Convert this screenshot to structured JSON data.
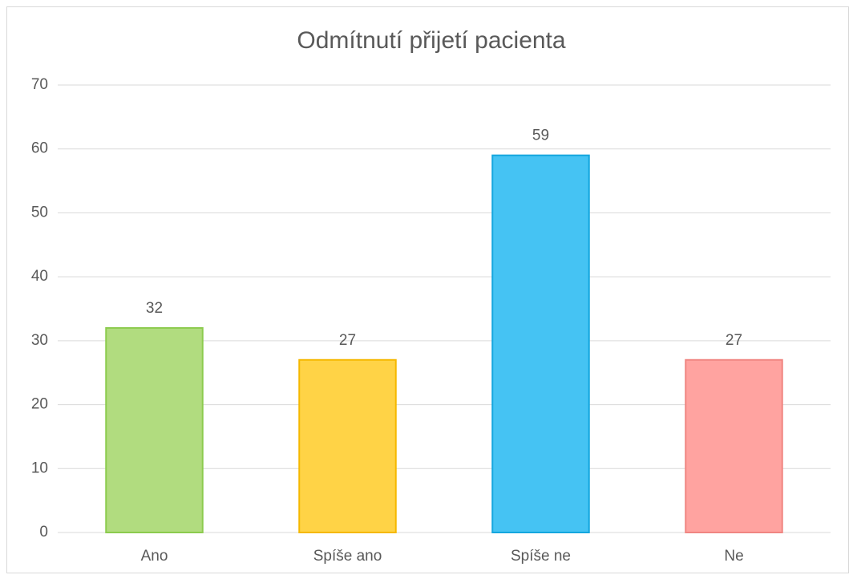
{
  "chart_data": {
    "type": "bar",
    "title": "Odmítnutí přijetí pacienta",
    "categories": [
      "Ano",
      "Spíše ano",
      "Spíše ne",
      "Ne"
    ],
    "values": [
      32,
      27,
      59,
      27
    ],
    "colors": [
      "#b1dc7f",
      "#ffd346",
      "#45c3f3",
      "#ffa3a0"
    ],
    "edge_colors": [
      "#8ccb4e",
      "#f5b800",
      "#14a6de",
      "#f08682"
    ],
    "ylim": [
      0,
      70
    ],
    "yticks": [
      0,
      10,
      20,
      30,
      40,
      50,
      60,
      70
    ],
    "grid": true
  }
}
